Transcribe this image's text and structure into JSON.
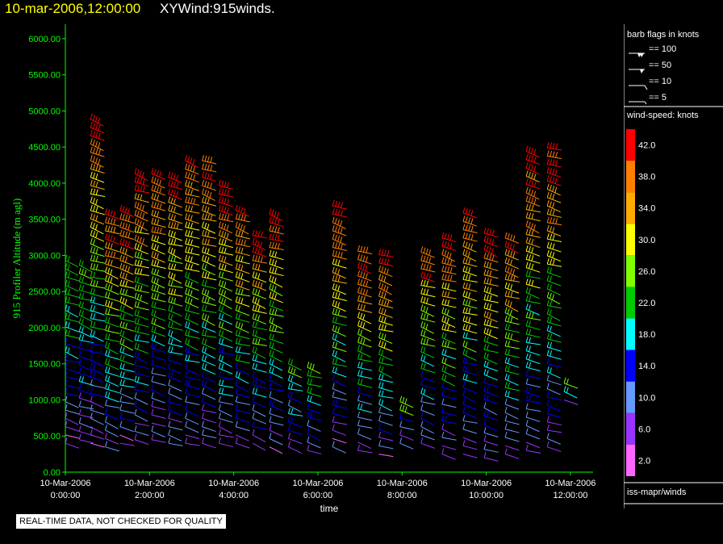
{
  "header": {
    "timestamp": "10-mar-2006,12:00:00",
    "product": "XYWind:915winds."
  },
  "notice": "REAL-TIME DATA, NOT CHECKED FOR QUALITY",
  "legend": {
    "barb_title": "barb flags in knots",
    "barb_items": [
      "== 100",
      "== 50",
      "== 10",
      "== 5"
    ],
    "speed_title": "wind-speed: knots",
    "color_bins": [
      {
        "label": "42.0",
        "color": "#ff0000"
      },
      {
        "label": "38.0",
        "color": "#ff7f00"
      },
      {
        "label": "34.0",
        "color": "#ffaa00"
      },
      {
        "label": "30.0",
        "color": "#ffff00"
      },
      {
        "label": "26.0",
        "color": "#7fff00"
      },
      {
        "label": "22.0",
        "color": "#00cc00"
      },
      {
        "label": "18.0",
        "color": "#00ffff"
      },
      {
        "label": "14.0",
        "color": "#0000ff"
      },
      {
        "label": "10.0",
        "color": "#6699ff"
      },
      {
        "label": "6.0",
        "color": "#9933ff"
      },
      {
        "label": "2.0",
        "color": "#ff66ff"
      }
    ],
    "source": "iss-mapr/winds"
  },
  "chart_data": {
    "type": "scatter",
    "title": "XYWind:915winds.",
    "xlabel": "time",
    "ylabel": "915 Profiler Altitude (m agl)",
    "ylim": [
      0,
      6200
    ],
    "yticks": [
      "0.00",
      "500.00",
      "1000.00",
      "1500.00",
      "2000.00",
      "2500.00",
      "3000.00",
      "3500.00",
      "4000.00",
      "4500.00",
      "5000.00",
      "5500.00",
      "6000.00"
    ],
    "xlim_hours": [
      0,
      12.5
    ],
    "xticks": [
      {
        "hour": 0,
        "date": "10-Mar-2006",
        "time": "0:00:00"
      },
      {
        "hour": 2,
        "date": "10-Mar-2006",
        "time": "2:00:00"
      },
      {
        "hour": 4,
        "date": "10-Mar-2006",
        "time": "4:00:00"
      },
      {
        "hour": 6,
        "date": "10-Mar-2006",
        "time": "6:00:00"
      },
      {
        "hour": 8,
        "date": "10-Mar-2006",
        "time": "8:00:00"
      },
      {
        "hour": 10,
        "date": "10-Mar-2006",
        "time": "10:00:00"
      },
      {
        "hour": 12,
        "date": "10-Mar-2006",
        "time": "12:00:00"
      }
    ],
    "axis_color": "#00ff00",
    "profiles": [
      {
        "hour": 0.0,
        "top": 2950,
        "bottom": 400
      },
      {
        "hour": 0.33,
        "top": 2950,
        "bottom": 450
      },
      {
        "hour": 0.6,
        "top": 4900,
        "bottom": 400
      },
      {
        "hour": 0.95,
        "top": 3650,
        "bottom": 350
      },
      {
        "hour": 1.3,
        "top": 3650,
        "bottom": 400
      },
      {
        "hour": 1.65,
        "top": 4150,
        "bottom": 450
      },
      {
        "hour": 2.05,
        "top": 4150,
        "bottom": 450
      },
      {
        "hour": 2.45,
        "top": 4150,
        "bottom": 400
      },
      {
        "hour": 2.85,
        "top": 4400,
        "bottom": 400
      },
      {
        "hour": 3.25,
        "top": 4350,
        "bottom": 400
      },
      {
        "hour": 3.65,
        "top": 4050,
        "bottom": 400
      },
      {
        "hour": 4.05,
        "top": 3650,
        "bottom": 400
      },
      {
        "hour": 4.45,
        "top": 3350,
        "bottom": 400
      },
      {
        "hour": 4.85,
        "top": 3650,
        "bottom": 350
      },
      {
        "hour": 5.3,
        "top": 1550,
        "bottom": 350
      },
      {
        "hour": 5.75,
        "top": 1450,
        "bottom": 300
      },
      {
        "hour": 6.35,
        "top": 3750,
        "bottom": 350
      },
      {
        "hour": 6.95,
        "top": 3100,
        "bottom": 300
      },
      {
        "hour": 7.45,
        "top": 3050,
        "bottom": 250
      },
      {
        "hour": 7.95,
        "top": 1000,
        "bottom": 400
      },
      {
        "hour": 8.45,
        "top": 3100,
        "bottom": 400
      },
      {
        "hour": 8.95,
        "top": 3250,
        "bottom": 250
      },
      {
        "hour": 9.45,
        "top": 3650,
        "bottom": 250
      },
      {
        "hour": 9.95,
        "top": 3350,
        "bottom": 200
      },
      {
        "hour": 10.45,
        "top": 3300,
        "bottom": 250
      },
      {
        "hour": 10.95,
        "top": 4500,
        "bottom": 300
      },
      {
        "hour": 11.45,
        "top": 4500,
        "bottom": 350
      },
      {
        "hour": 11.85,
        "top": 1250,
        "bottom": 1000
      }
    ]
  }
}
